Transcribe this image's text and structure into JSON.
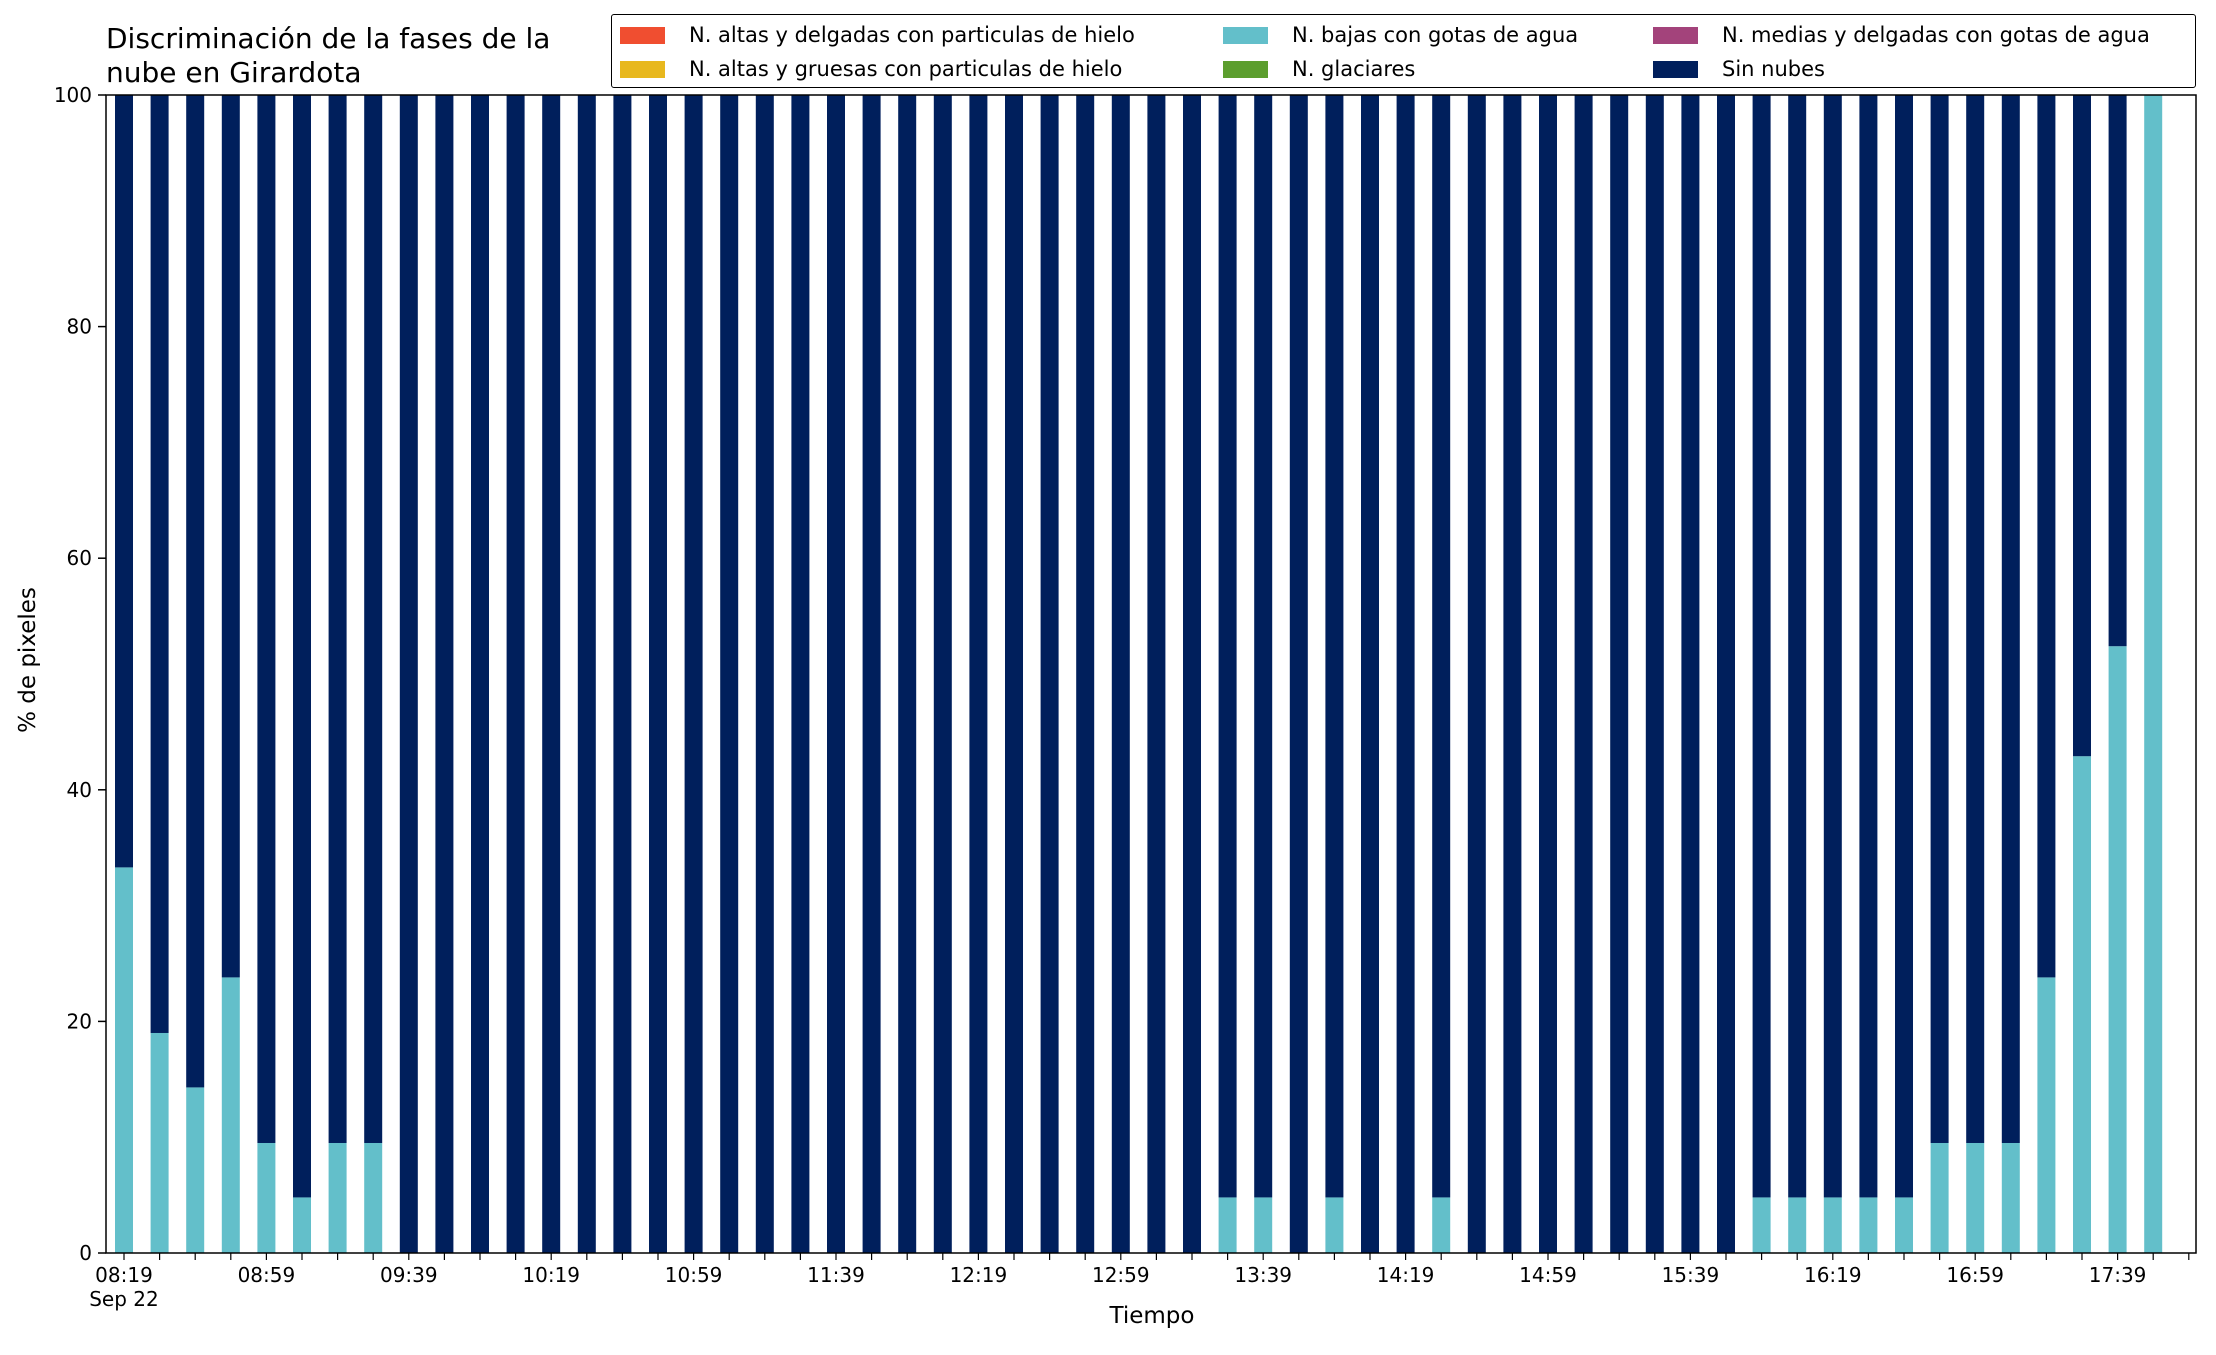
{
  "chart_data": {
    "type": "bar",
    "stacked": true,
    "title": "Discriminación de la fases de la nube en Girardota",
    "xlabel": "Tiempo",
    "ylabel": "% de pixeles",
    "ylim": [
      0,
      100
    ],
    "yticks": [
      0,
      20,
      40,
      60,
      80,
      100
    ],
    "grid": false,
    "legend_position": "top-right",
    "x_tick_labels": [
      "08:19",
      "08:59",
      "09:39",
      "10:19",
      "10:59",
      "11:39",
      "12:19",
      "12:59",
      "13:39",
      "14:19",
      "14:59",
      "15:39",
      "16:19",
      "16:59",
      "17:39"
    ],
    "x_tick_sublabel": "Sep 22",
    "x_times": [
      "08:19",
      "08:29",
      "08:39",
      "08:49",
      "08:59",
      "09:09",
      "09:19",
      "09:29",
      "09:39",
      "09:49",
      "09:59",
      "10:09",
      "10:19",
      "10:29",
      "10:39",
      "10:49",
      "10:59",
      "11:09",
      "11:19",
      "11:29",
      "11:39",
      "11:49",
      "11:59",
      "12:09",
      "12:19",
      "12:29",
      "12:39",
      "12:49",
      "12:59",
      "13:09",
      "13:19",
      "13:29",
      "13:39",
      "13:49",
      "13:59",
      "14:09",
      "14:19",
      "14:29",
      "14:39",
      "14:49",
      "14:59",
      "15:09",
      "15:19",
      "15:29",
      "15:39",
      "15:49",
      "15:59",
      "16:09",
      "16:19",
      "16:29",
      "16:39",
      "16:49",
      "16:59",
      "17:09",
      "17:19",
      "17:29",
      "17:39",
      "17:49"
    ],
    "series": [
      {
        "name": "N. altas y delgadas con particulas de hielo",
        "color": "#f04e30",
        "values": [
          0,
          0,
          0,
          0,
          0,
          0,
          0,
          0,
          0,
          0,
          0,
          0,
          0,
          0,
          0,
          0,
          0,
          0,
          0,
          0,
          0,
          0,
          0,
          0,
          0,
          0,
          0,
          0,
          0,
          0,
          0,
          0,
          0,
          0,
          0,
          0,
          0,
          0,
          0,
          0,
          0,
          0,
          0,
          0,
          0,
          0,
          0,
          0,
          0,
          0,
          0,
          0,
          0,
          0,
          0,
          0,
          0,
          0
        ]
      },
      {
        "name": "N. altas y gruesas con particulas de hielo",
        "color": "#e8b81e",
        "values": [
          0,
          0,
          0,
          0,
          0,
          0,
          0,
          0,
          0,
          0,
          0,
          0,
          0,
          0,
          0,
          0,
          0,
          0,
          0,
          0,
          0,
          0,
          0,
          0,
          0,
          0,
          0,
          0,
          0,
          0,
          0,
          0,
          0,
          0,
          0,
          0,
          0,
          0,
          0,
          0,
          0,
          0,
          0,
          0,
          0,
          0,
          0,
          0,
          0,
          0,
          0,
          0,
          0,
          0,
          0,
          0,
          0,
          0
        ]
      },
      {
        "name": "N. bajas con gotas de agua",
        "color": "#63bfca",
        "values": [
          33.3,
          19.0,
          14.3,
          23.8,
          9.5,
          4.8,
          9.5,
          9.5,
          0,
          0,
          0,
          0,
          0,
          0,
          0,
          0,
          0,
          0,
          0,
          0,
          0,
          0,
          0,
          0,
          0,
          0,
          0,
          0,
          0,
          0,
          0,
          4.8,
          4.8,
          0,
          4.8,
          0,
          0,
          4.8,
          0,
          0,
          0,
          0,
          0,
          0,
          0,
          0,
          4.8,
          4.8,
          4.8,
          4.8,
          4.8,
          9.5,
          9.5,
          9.5,
          23.8,
          42.9,
          52.4,
          100
        ]
      },
      {
        "name": "N. glaciares",
        "color": "#5c9e2e",
        "values": [
          0,
          0,
          0,
          0,
          0,
          0,
          0,
          0,
          0,
          0,
          0,
          0,
          0,
          0,
          0,
          0,
          0,
          0,
          0,
          0,
          0,
          0,
          0,
          0,
          0,
          0,
          0,
          0,
          0,
          0,
          0,
          0,
          0,
          0,
          0,
          0,
          0,
          0,
          0,
          0,
          0,
          0,
          0,
          0,
          0,
          0,
          0,
          0,
          0,
          0,
          0,
          0,
          0,
          0,
          0,
          0,
          0,
          0
        ]
      },
      {
        "name": "N. medias y delgadas con gotas de agua",
        "color": "#a3437b",
        "values": [
          0,
          0,
          0,
          0,
          0,
          0,
          0,
          0,
          0,
          0,
          0,
          0,
          0,
          0,
          0,
          0,
          0,
          0,
          0,
          0,
          0,
          0,
          0,
          0,
          0,
          0,
          0,
          0,
          0,
          0,
          0,
          0,
          0,
          0,
          0,
          0,
          0,
          0,
          0,
          0,
          0,
          0,
          0,
          0,
          0,
          0,
          0,
          0,
          0,
          0,
          0,
          0,
          0,
          0,
          0,
          0,
          0,
          0
        ]
      },
      {
        "name": "Sin nubes",
        "color": "#001f5c",
        "values": [
          66.7,
          81.0,
          85.7,
          76.2,
          90.5,
          95.2,
          90.5,
          90.5,
          100,
          100,
          100,
          100,
          100,
          100,
          100,
          100,
          100,
          100,
          100,
          100,
          100,
          100,
          100,
          100,
          100,
          100,
          100,
          100,
          100,
          100,
          100,
          95.2,
          95.2,
          100,
          95.2,
          100,
          100,
          95.2,
          100,
          100,
          100,
          100,
          100,
          100,
          100,
          100,
          95.2,
          95.2,
          95.2,
          95.2,
          95.2,
          90.5,
          90.5,
          90.5,
          76.2,
          57.1,
          47.6,
          0
        ]
      }
    ]
  }
}
